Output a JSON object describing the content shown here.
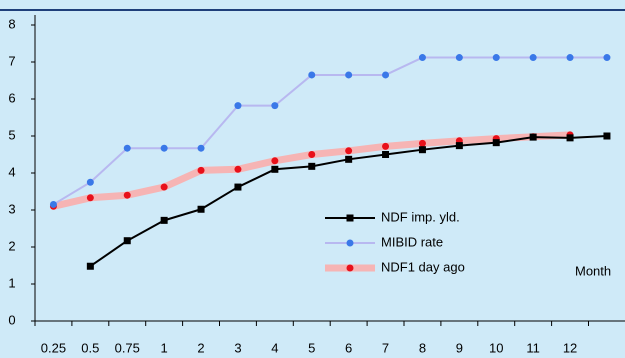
{
  "chart_data": {
    "type": "line",
    "categories": [
      "0.25",
      "0.5",
      "0.75",
      "1",
      "2",
      "3",
      "4",
      "5",
      "6",
      "7",
      "8",
      "9",
      "10",
      "11",
      "12",
      null
    ],
    "series": [
      {
        "name": "NDF imp. yld.",
        "color": "#000000",
        "marker": "square",
        "values": [
          null,
          1.48,
          2.17,
          2.72,
          3.02,
          3.62,
          4.1,
          4.18,
          4.37,
          4.5,
          4.63,
          4.74,
          4.82,
          4.97,
          4.95,
          5.0
        ]
      },
      {
        "name": "MIBID rate",
        "color": "#b8b8f0",
        "marker_color": "#3a78e8",
        "marker": "circle",
        "values": [
          3.15,
          3.75,
          4.67,
          4.67,
          4.67,
          5.82,
          5.82,
          6.65,
          6.65,
          6.65,
          7.12,
          7.12,
          7.12,
          7.12,
          7.12,
          7.12
        ]
      },
      {
        "name": "NDF1 day ago",
        "color": "#f6b4b4",
        "marker_color": "#e8101a",
        "marker": "circle",
        "values": [
          3.1,
          3.33,
          3.4,
          3.62,
          4.07,
          4.1,
          4.33,
          4.5,
          4.6,
          4.72,
          4.8,
          4.87,
          4.93,
          4.98,
          5.03,
          null
        ]
      }
    ],
    "x_label": "Month",
    "ylim": [
      0,
      8
    ],
    "yticks": [
      0,
      1,
      2,
      3,
      4,
      5,
      6,
      7,
      8
    ]
  }
}
